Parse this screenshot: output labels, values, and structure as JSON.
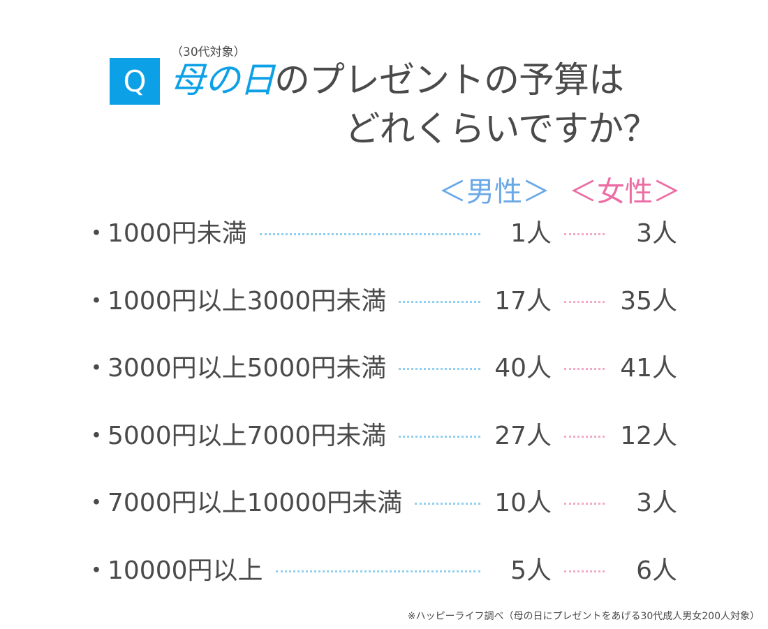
{
  "header": {
    "q_mark": "Q",
    "target_note": "（30代対象）",
    "title_accent": "母の日",
    "title_rest": "のプレゼントの予算は",
    "title_line2": "どれくらいですか？"
  },
  "chart_data": {
    "type": "table",
    "columns": [
      "＜男性＞",
      "＜女性＞"
    ],
    "unit": "人",
    "rows": [
      {
        "label": "1000円未満",
        "male": 1,
        "female": 3
      },
      {
        "label": "1000円以上3000円未満",
        "male": 17,
        "female": 35
      },
      {
        "label": "3000円以上5000円未満",
        "male": 40,
        "female": 41
      },
      {
        "label": "5000円以上7000円未満",
        "male": 27,
        "female": 12
      },
      {
        "label": "7000円以上10000円未満",
        "male": 10,
        "female": 3
      },
      {
        "label": "10000円以上",
        "male": 5,
        "female": 6
      }
    ]
  },
  "colors": {
    "accent": "#0ca0e6",
    "male": "#6aa8e8",
    "female": "#ec6da3",
    "text": "#4a4a4a"
  },
  "bullet": "・",
  "source": "※ハッピーライフ調べ（母の日にプレゼントをあげる30代成人男女200人対象）"
}
